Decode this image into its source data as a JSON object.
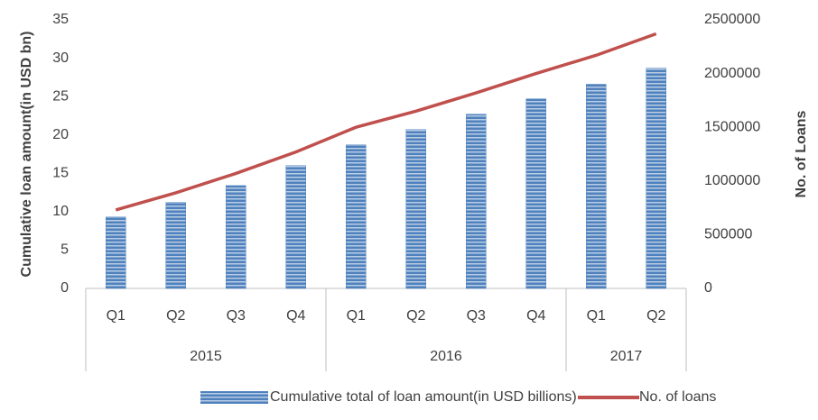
{
  "chart_data": {
    "type": "bar_line",
    "categories": [
      "Q1",
      "Q2",
      "Q3",
      "Q4",
      "Q1",
      "Q2",
      "Q3",
      "Q4",
      "Q1",
      "Q2"
    ],
    "groups": [
      {
        "name": "2015",
        "count": 4
      },
      {
        "name": "2016",
        "count": 4
      },
      {
        "name": "2017",
        "count": 2
      }
    ],
    "ylabel": "Cumulative loan amount(in USD bn)",
    "y2label": "No. of Loans",
    "ylim": [
      0,
      35
    ],
    "yticks": [
      0,
      5,
      10,
      15,
      20,
      25,
      30,
      35
    ],
    "y2lim": [
      0,
      2500000
    ],
    "y2ticks": [
      0,
      500000,
      1000000,
      1500000,
      2000000,
      2500000
    ],
    "series": [
      {
        "name": "Cumulative total of loan amount(in USD billions)",
        "type": "bar",
        "color": "#4f81bd",
        "values": [
          9.3,
          11.2,
          13.4,
          16.0,
          18.7,
          20.7,
          22.7,
          24.7,
          26.6,
          28.7
        ]
      },
      {
        "name": "No. of loans",
        "type": "line",
        "axis": "y2",
        "color": "#c0504d",
        "values": [
          730000,
          890000,
          1070000,
          1270000,
          1500000,
          1650000,
          1820000,
          2000000,
          2170000,
          2370000
        ]
      }
    ],
    "legend": "bottom"
  }
}
